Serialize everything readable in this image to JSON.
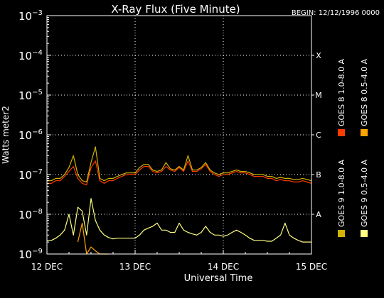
{
  "chart_data": {
    "type": "line",
    "title": "X-Ray Flux (Five Minute)",
    "begin_label": "BEGIN: 12/12/1996 0000",
    "xlabel": "Universal Time",
    "ylabel": "Watts meter2",
    "y_scale": "log",
    "ylim": [
      1e-09,
      0.001
    ],
    "x_unit": "days since BEGIN",
    "xlim": [
      0,
      3
    ],
    "x_ticks": [
      {
        "x": 0,
        "label": "12 DEC"
      },
      {
        "x": 1,
        "label": "13 DEC"
      },
      {
        "x": 2,
        "label": "14 DEC"
      },
      {
        "x": 3,
        "label": "15 DEC"
      }
    ],
    "y_ticks": [
      {
        "base": "10",
        "exp": "−9",
        "value": 1e-09
      },
      {
        "base": "10",
        "exp": "−8",
        "value": 1e-08
      },
      {
        "base": "10",
        "exp": "−7",
        "value": 1e-07
      },
      {
        "base": "10",
        "exp": "−6",
        "value": 1e-06
      },
      {
        "base": "10",
        "exp": "−5",
        "value": 1e-05
      },
      {
        "base": "10",
        "exp": "−4",
        "value": 0.0001
      },
      {
        "base": "10",
        "exp": "−3",
        "value": 0.001
      }
    ],
    "flare_classes": [
      {
        "label": "A",
        "value": 1e-08
      },
      {
        "label": "B",
        "value": 1e-07
      },
      {
        "label": "C",
        "value": 1e-06
      },
      {
        "label": "M",
        "value": 1e-05
      },
      {
        "label": "X",
        "value": 0.0001
      }
    ],
    "grid": "dotted",
    "legend_position": "right (vertical)",
    "series": [
      {
        "name": "GOES 8 1.0-8.0 A",
        "color": "#ff3c00",
        "x": [
          0,
          0.05,
          0.1,
          0.15,
          0.2,
          0.25,
          0.3,
          0.35,
          0.4,
          0.45,
          0.5,
          0.55,
          0.6,
          0.65,
          0.7,
          0.75,
          0.8,
          0.85,
          0.9,
          0.95,
          1.0,
          1.05,
          1.1,
          1.15,
          1.2,
          1.25,
          1.3,
          1.35,
          1.4,
          1.45,
          1.5,
          1.55,
          1.6,
          1.65,
          1.7,
          1.75,
          1.8,
          1.85,
          1.9,
          1.95,
          2.0,
          2.05,
          2.1,
          2.15,
          2.2,
          2.25,
          2.3,
          2.35,
          2.4,
          2.45,
          2.5,
          2.55,
          2.6,
          2.65,
          2.7,
          2.75,
          2.8,
          2.85,
          2.9,
          2.95,
          3.0
        ],
        "y": [
          6e-08,
          6e-08,
          7e-08,
          7e-08,
          9e-08,
          1.2e-07,
          1.6e-07,
          8e-08,
          6e-08,
          5.5e-08,
          1.5e-07,
          2.2e-07,
          7e-08,
          6e-08,
          7e-08,
          7e-08,
          8e-08,
          9e-08,
          1e-07,
          1e-07,
          1e-07,
          1.3e-07,
          1.6e-07,
          1.6e-07,
          1.2e-07,
          1.1e-07,
          1.2e-07,
          1.6e-07,
          1.3e-07,
          1.2e-07,
          1.5e-07,
          1.2e-07,
          2.2e-07,
          1.2e-07,
          1.2e-07,
          1.4e-07,
          1.8e-07,
          1.2e-07,
          1e-07,
          9e-08,
          1e-07,
          1e-07,
          1.1e-07,
          1.2e-07,
          1.1e-07,
          1.1e-07,
          1e-07,
          9e-08,
          9e-08,
          9e-08,
          8e-08,
          8e-08,
          7e-08,
          7.5e-08,
          7e-08,
          7e-08,
          6.5e-08,
          6.5e-08,
          7e-08,
          6.5e-08,
          6e-08
        ]
      },
      {
        "name": "GOES 8 0.5-4.0 A",
        "color": "#ffa500",
        "x": [
          0.35,
          0.4,
          0.45,
          0.5,
          0.55,
          0.6,
          0.65,
          0.7
        ],
        "y": [
          2e-09,
          6e-09,
          1e-09,
          1.5e-09,
          1.2e-09,
          1e-09,
          1e-09,
          1e-09
        ]
      },
      {
        "name": "GOES 9 1.0-8.0 A",
        "color": "#d2b400",
        "x": [
          0,
          0.05,
          0.1,
          0.15,
          0.2,
          0.25,
          0.3,
          0.35,
          0.4,
          0.45,
          0.5,
          0.55,
          0.6,
          0.65,
          0.7,
          0.75,
          0.8,
          0.85,
          0.9,
          0.95,
          1.0,
          1.05,
          1.1,
          1.15,
          1.2,
          1.25,
          1.3,
          1.35,
          1.4,
          1.45,
          1.5,
          1.55,
          1.6,
          1.65,
          1.7,
          1.75,
          1.8,
          1.85,
          1.9,
          1.95,
          2.0,
          2.05,
          2.1,
          2.15,
          2.2,
          2.25,
          2.3,
          2.35,
          2.4,
          2.45,
          2.5,
          2.55,
          2.6,
          2.65,
          2.7,
          2.75,
          2.8,
          2.85,
          2.9,
          2.95,
          3.0
        ],
        "y": [
          7e-08,
          7e-08,
          8e-08,
          8e-08,
          1e-07,
          1.5e-07,
          3e-07,
          1e-07,
          7e-08,
          6.5e-08,
          2e-07,
          5e-07,
          8e-08,
          7e-08,
          8e-08,
          8e-08,
          9e-08,
          1e-07,
          1.1e-07,
          1.1e-07,
          1.1e-07,
          1.5e-07,
          1.8e-07,
          1.8e-07,
          1.3e-07,
          1.2e-07,
          1.3e-07,
          2e-07,
          1.4e-07,
          1.3e-07,
          1.6e-07,
          1.3e-07,
          3e-07,
          1.3e-07,
          1.3e-07,
          1.5e-07,
          2e-07,
          1.3e-07,
          1.1e-07,
          1e-07,
          1.1e-07,
          1.1e-07,
          1.2e-07,
          1.3e-07,
          1.2e-07,
          1.2e-07,
          1.1e-07,
          1e-07,
          1e-07,
          1e-07,
          9e-08,
          9e-08,
          8e-08,
          8.5e-08,
          8e-08,
          8e-08,
          7.5e-08,
          7.5e-08,
          8e-08,
          7.5e-08,
          7e-08
        ]
      },
      {
        "name": "GOES 9 0.5-4.0 A",
        "color": "#ffff80",
        "x": [
          0,
          0.05,
          0.1,
          0.15,
          0.2,
          0.25,
          0.3,
          0.35,
          0.4,
          0.45,
          0.5,
          0.55,
          0.6,
          0.65,
          0.7,
          0.75,
          0.8,
          0.85,
          0.9,
          0.95,
          1.0,
          1.05,
          1.1,
          1.15,
          1.2,
          1.25,
          1.3,
          1.35,
          1.4,
          1.45,
          1.5,
          1.55,
          1.6,
          1.65,
          1.7,
          1.75,
          1.8,
          1.85,
          1.9,
          1.95,
          2.0,
          2.05,
          2.1,
          2.15,
          2.2,
          2.25,
          2.3,
          2.35,
          2.4,
          2.45,
          2.5,
          2.55,
          2.6,
          2.65,
          2.7,
          2.75,
          2.8,
          2.85,
          2.9,
          2.95,
          3.0
        ],
        "y": [
          2.2e-09,
          2.2e-09,
          2.5e-09,
          3e-09,
          4e-09,
          1e-08,
          3e-09,
          1.5e-08,
          1.2e-08,
          3e-09,
          2.5e-08,
          7e-09,
          4e-09,
          3e-09,
          2.6e-09,
          2.4e-09,
          2.5e-09,
          2.5e-09,
          2.5e-09,
          2.5e-09,
          2.5e-09,
          3e-09,
          4e-09,
          4.5e-09,
          5e-09,
          6e-09,
          4e-09,
          4e-09,
          3.5e-09,
          3.5e-09,
          6e-09,
          4e-09,
          3.5e-09,
          3.2e-09,
          3e-09,
          3.5e-09,
          5e-09,
          3.5e-09,
          3e-09,
          3e-09,
          2.8e-09,
          3e-09,
          3.5e-09,
          4e-09,
          3.5e-09,
          3e-09,
          2.5e-09,
          2.2e-09,
          2.2e-09,
          2.2e-09,
          2.1e-09,
          2.1e-09,
          2.5e-09,
          3e-09,
          6e-09,
          3e-09,
          2.5e-09,
          2.2e-09,
          2e-09,
          2e-09,
          2e-09
        ]
      }
    ]
  }
}
